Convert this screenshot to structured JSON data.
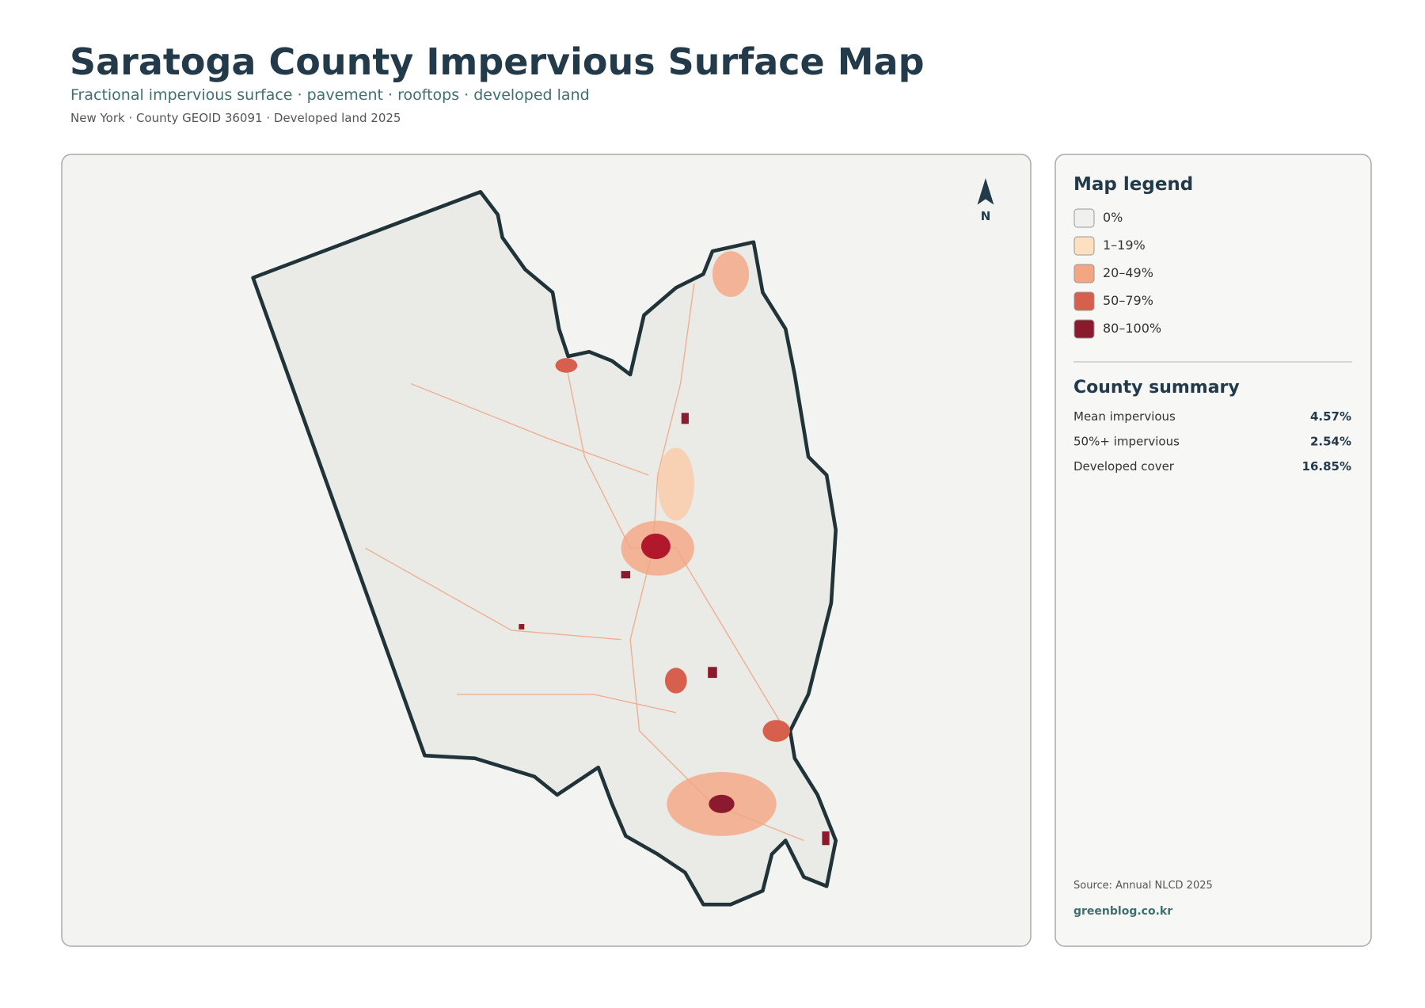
{
  "header": {
    "title": "Saratoga County Impervious Surface Map",
    "subtitle": "Fractional impervious surface · pavement · rooftops · developed land",
    "meta": "New York · County GEOID 36091 · Developed land 2025"
  },
  "map": {
    "north": "N"
  },
  "legend": {
    "title": "Map legend",
    "items": [
      {
        "label": "0%",
        "color": "#f0f0ee"
      },
      {
        "label": "1–19%",
        "color": "#fde0c0"
      },
      {
        "label": "20–49%",
        "color": "#f4a582"
      },
      {
        "label": "50–79%",
        "color": "#d6604d"
      },
      {
        "label": "80–100%",
        "color": "#8b1a2e"
      }
    ]
  },
  "summary": {
    "title": "County summary",
    "rows": [
      [
        "Mean impervious",
        "4.57%"
      ],
      [
        "50%+ impervious",
        "2.54%"
      ],
      [
        "Developed cover",
        "16.85%"
      ]
    ]
  },
  "footer": {
    "source": "Source: Annual NLCD 2025",
    "site": "greenblog.co.kr"
  }
}
